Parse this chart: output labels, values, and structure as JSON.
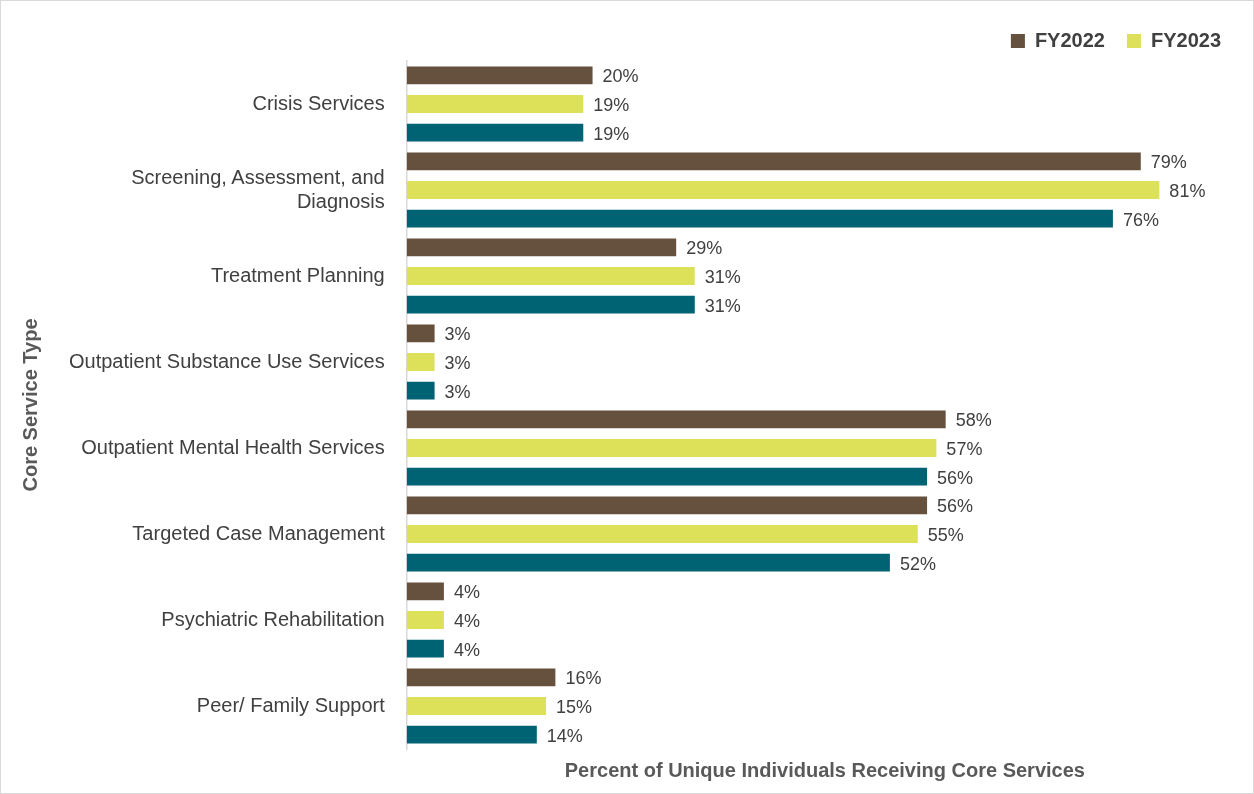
{
  "chart_data": {
    "type": "bar",
    "orientation": "horizontal",
    "xlabel": "Percent of Unique Individuals Receiving Core Services",
    "ylabel": "Core Service Type",
    "categories": [
      "Crisis Services",
      "Screening, Assessment, and Diagnosis",
      "Treatment Planning",
      "Outpatient Substance Use Services",
      "Outpatient Mental Health Services",
      "Targeted Case Management",
      "Psychiatric Rehabilitation",
      "Peer/ Family Support"
    ],
    "series": [
      {
        "name": "FY2022",
        "color": "#65513d",
        "values": [
          20,
          79,
          29,
          3,
          58,
          56,
          4,
          16
        ],
        "value_labels": [
          "20%",
          "79%",
          "29%",
          "3%",
          "58%",
          "56%",
          "4%",
          "16%"
        ]
      },
      {
        "name": "FY2023",
        "color": "#dde15a",
        "values": [
          19,
          81,
          31,
          3,
          57,
          55,
          4,
          15
        ],
        "value_labels": [
          "19%",
          "81%",
          "31%",
          "3%",
          "57%",
          "55%",
          "4%",
          "15%"
        ]
      },
      {
        "color": "#006373",
        "values": [
          19,
          76,
          31,
          3,
          56,
          52,
          4,
          14
        ],
        "value_labels": [
          "19%",
          "76%",
          "31%",
          "3%",
          "56%",
          "52%",
          "4%",
          "14%"
        ]
      }
    ],
    "legend": "top right",
    "tick_labels": "y"
  }
}
